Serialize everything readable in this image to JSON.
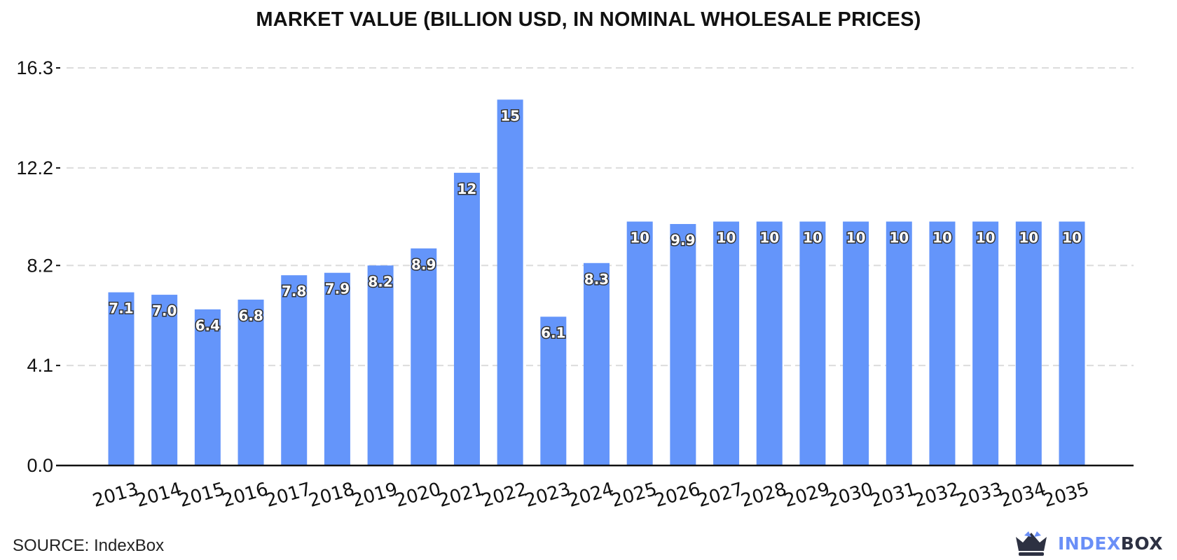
{
  "chart_data": {
    "type": "bar",
    "title": "MARKET VALUE (BILLION USD, IN NOMINAL WHOLESALE PRICES)",
    "xlabel": "",
    "ylabel": "",
    "categories": [
      "2013",
      "2014",
      "2015",
      "2016",
      "2017",
      "2018",
      "2019",
      "2020",
      "2021",
      "2022",
      "2023",
      "2024",
      "2025",
      "2026",
      "2027",
      "2028",
      "2029",
      "2030",
      "2031",
      "2032",
      "2033",
      "2034",
      "2035"
    ],
    "values": [
      7.1,
      7.0,
      6.4,
      6.8,
      7.8,
      7.9,
      8.2,
      8.9,
      12,
      15,
      6.1,
      8.3,
      10,
      9.9,
      10,
      10,
      10,
      10,
      10,
      10,
      10,
      10,
      10
    ],
    "value_labels": [
      "7.1",
      "7.0",
      "6.4",
      "6.8",
      "7.8",
      "7.9",
      "8.2",
      "8.9",
      "12",
      "15",
      "6.1",
      "8.3",
      "10",
      "9.9",
      "10",
      "10",
      "10",
      "10",
      "10",
      "10",
      "10",
      "10",
      "10"
    ],
    "yticks": [
      "0.0",
      "4.1",
      "8.2",
      "12.2",
      "16.3"
    ],
    "ylim": [
      0,
      16.3
    ],
    "grid": true,
    "legend": "none",
    "bar_color": "#6495fa"
  },
  "footer": {
    "source": "SOURCE: IndexBox",
    "brand_part1": "INDEX",
    "brand_part2": "BOX"
  }
}
